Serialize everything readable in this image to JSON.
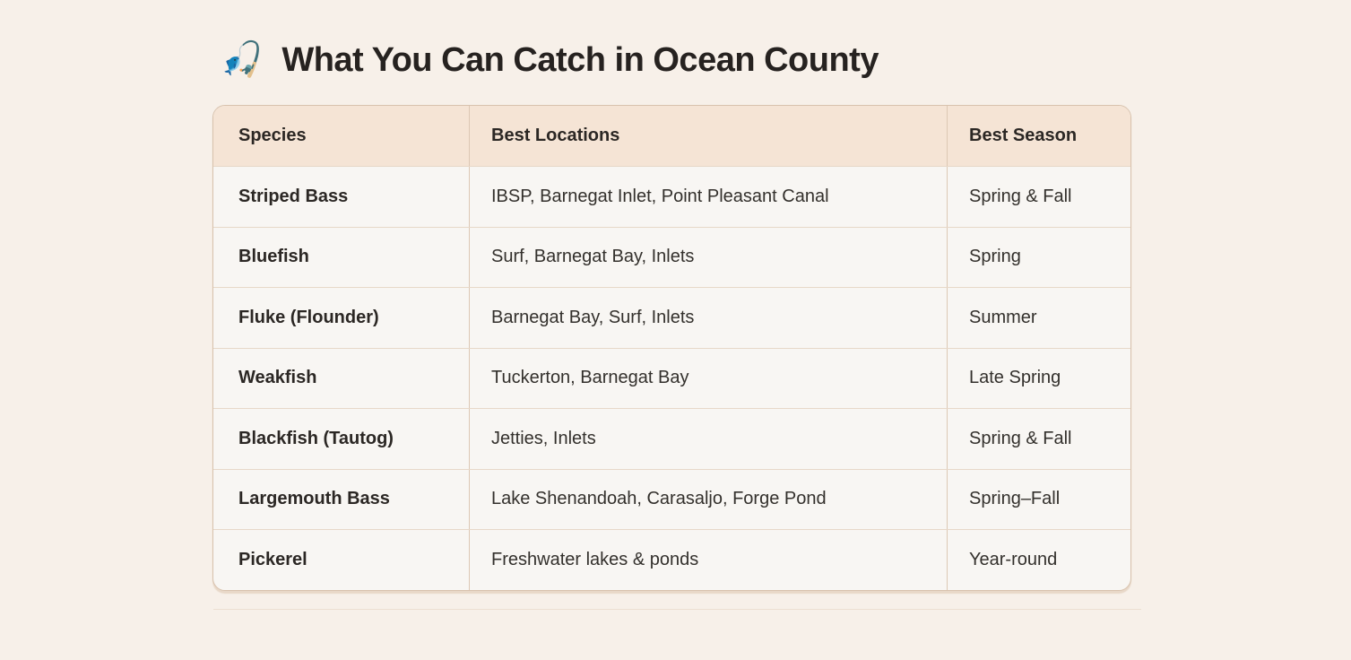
{
  "page": {
    "title_emoji": "🎣",
    "title": "What You Can Catch in Ocean County"
  },
  "table": {
    "columns": [
      "Species",
      "Best Locations",
      "Best Season"
    ],
    "rows": [
      {
        "species": "Striped Bass",
        "locations": "IBSP, Barnegat Inlet, Point Pleasant Canal",
        "season": "Spring & Fall"
      },
      {
        "species": "Bluefish",
        "locations": "Surf, Barnegat Bay, Inlets",
        "season": "Spring"
      },
      {
        "species": "Fluke (Flounder)",
        "locations": "Barnegat Bay, Surf, Inlets",
        "season": "Summer"
      },
      {
        "species": "Weakfish",
        "locations": "Tuckerton, Barnegat Bay",
        "season": "Late Spring"
      },
      {
        "species": "Blackfish (Tautog)",
        "locations": "Jetties, Inlets",
        "season": "Spring & Fall"
      },
      {
        "species": "Largemouth Bass",
        "locations": "Lake Shenandoah, Carasaljo, Forge Pond",
        "season": "Spring–Fall"
      },
      {
        "species": "Pickerel",
        "locations": "Freshwater lakes & ponds",
        "season": "Year-round"
      }
    ]
  },
  "colors": {
    "page_bg": "#f7f0e9",
    "header_bg": "#f5e4d5",
    "row_bg": "#f8f6f3",
    "table_border": "#d8c2ad",
    "row_border": "#e7d8c8",
    "text": "#2e2b28"
  }
}
